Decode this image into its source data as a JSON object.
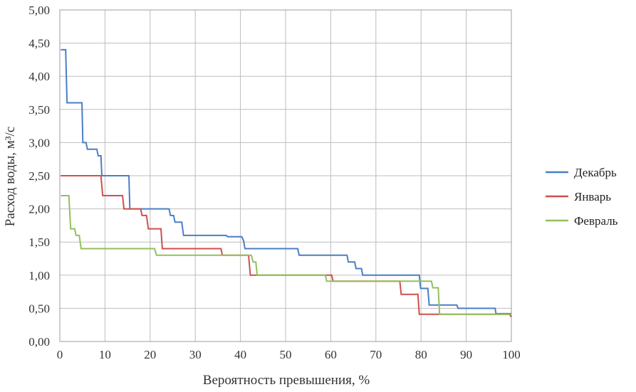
{
  "chart_data": {
    "type": "line",
    "xlabel": "Вероятность превышения, %",
    "ylabel": "Расход воды, м³/с",
    "xlim": [
      0,
      100
    ],
    "ylim": [
      0,
      5
    ],
    "x_ticks": [
      "0",
      "10",
      "20",
      "30",
      "40",
      "50",
      "60",
      "70",
      "80",
      "90",
      "100"
    ],
    "y_ticks": [
      "0,00",
      "0,50",
      "1,00",
      "1,50",
      "2,00",
      "2,50",
      "3,00",
      "3,50",
      "4,00",
      "4,50",
      "5,00"
    ],
    "grid": true,
    "legend_position": "right",
    "series": [
      {
        "name": "Декабрь",
        "color": "#4a7fc5",
        "points": [
          [
            0.2,
            4.4
          ],
          [
            1.3,
            4.4
          ],
          [
            1.6,
            3.6
          ],
          [
            4.9,
            3.6
          ],
          [
            5.1,
            3.0
          ],
          [
            5.8,
            3.0
          ],
          [
            6.1,
            2.9
          ],
          [
            8.2,
            2.9
          ],
          [
            8.5,
            2.8
          ],
          [
            9.1,
            2.8
          ],
          [
            9.3,
            2.5
          ],
          [
            15.3,
            2.5
          ],
          [
            15.5,
            2.0
          ],
          [
            24.2,
            2.0
          ],
          [
            24.5,
            1.9
          ],
          [
            25.2,
            1.9
          ],
          [
            25.5,
            1.8
          ],
          [
            27.0,
            1.8
          ],
          [
            27.4,
            1.6
          ],
          [
            36.8,
            1.6
          ],
          [
            37.2,
            1.58
          ],
          [
            40.3,
            1.58
          ],
          [
            40.7,
            1.52
          ],
          [
            41.0,
            1.4
          ],
          [
            52.7,
            1.4
          ],
          [
            53.0,
            1.3
          ],
          [
            63.6,
            1.3
          ],
          [
            63.9,
            1.2
          ],
          [
            65.3,
            1.2
          ],
          [
            65.6,
            1.1
          ],
          [
            66.8,
            1.1
          ],
          [
            67.1,
            1.0
          ],
          [
            79.6,
            1.0
          ],
          [
            79.9,
            0.8
          ],
          [
            81.5,
            0.8
          ],
          [
            81.8,
            0.55
          ],
          [
            87.9,
            0.55
          ],
          [
            88.2,
            0.5
          ],
          [
            96.4,
            0.5
          ],
          [
            96.6,
            0.42
          ],
          [
            100,
            0.42
          ]
        ]
      },
      {
        "name": "Январь",
        "color": "#d04e4e",
        "points": [
          [
            0.2,
            2.5
          ],
          [
            9.1,
            2.5
          ],
          [
            9.5,
            2.2
          ],
          [
            13.9,
            2.2
          ],
          [
            14.2,
            2.0
          ],
          [
            17.9,
            2.0
          ],
          [
            18.2,
            1.9
          ],
          [
            19.2,
            1.9
          ],
          [
            19.6,
            1.7
          ],
          [
            22.4,
            1.7
          ],
          [
            22.7,
            1.4
          ],
          [
            35.7,
            1.4
          ],
          [
            36.0,
            1.3
          ],
          [
            41.8,
            1.3
          ],
          [
            42.2,
            1.0
          ],
          [
            60.2,
            1.0
          ],
          [
            60.5,
            0.91
          ],
          [
            75.3,
            0.91
          ],
          [
            75.6,
            0.71
          ],
          [
            79.3,
            0.71
          ],
          [
            79.6,
            0.41
          ],
          [
            99.6,
            0.41
          ],
          [
            100,
            0.37
          ]
        ]
      },
      {
        "name": "Февраль",
        "color": "#92c15a",
        "points": [
          [
            0.2,
            2.2
          ],
          [
            2.0,
            2.2
          ],
          [
            2.4,
            1.7
          ],
          [
            3.3,
            1.7
          ],
          [
            3.6,
            1.6
          ],
          [
            4.3,
            1.6
          ],
          [
            4.7,
            1.4
          ],
          [
            21.0,
            1.4
          ],
          [
            21.4,
            1.3
          ],
          [
            42.4,
            1.3
          ],
          [
            42.8,
            1.2
          ],
          [
            43.4,
            1.2
          ],
          [
            43.7,
            1.0
          ],
          [
            58.8,
            1.0
          ],
          [
            59.1,
            0.91
          ],
          [
            82.3,
            0.91
          ],
          [
            82.6,
            0.81
          ],
          [
            83.8,
            0.81
          ],
          [
            84.1,
            0.41
          ],
          [
            100,
            0.41
          ]
        ]
      }
    ]
  }
}
